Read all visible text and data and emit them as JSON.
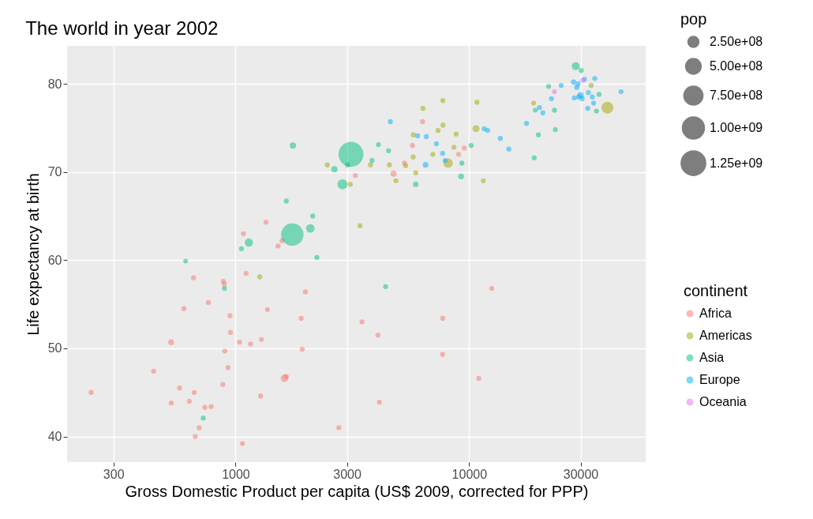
{
  "chart_data": {
    "type": "bubble",
    "title": "The world in year 2002",
    "xlabel": "Gross Domestic Product per capita (US$ 2009, corrected for PPP)",
    "ylabel": "Life expectancy at birth",
    "legend_title": [
      "pop",
      "continent"
    ],
    "log": "x",
    "grid": true,
    "legend": "right",
    "marker": "circle",
    "xlim": [
      190,
      57000
    ],
    "xticks": [
      300,
      1000,
      3000,
      10000,
      30000
    ],
    "ylim": [
      37.1,
      84.3
    ],
    "yticks": [
      40,
      50,
      60,
      70,
      80
    ],
    "size_legend": [
      {
        "value": 250000000,
        "label": "2.50e+08"
      },
      {
        "value": 500000000,
        "label": "5.00e+08"
      },
      {
        "value": 750000000,
        "label": "7.50e+08"
      },
      {
        "value": 1000000000,
        "label": "1.00e+09"
      },
      {
        "value": 1250000000,
        "label": "1.25e+09"
      }
    ],
    "series": [
      {
        "name": "Africa",
        "color": "#f8766d",
        "x": [
          5290,
          2770,
          1370,
          11000,
          1040,
          446,
          1930,
          739,
          1160,
          1080,
          241,
          3480,
          1650,
          1910,
          4750,
          7700,
          765,
          530,
          12500,
          661,
          1110,
          946,
          576,
          1290,
          1280,
          531,
          9530,
          895,
          665,
          951,
          1580,
          9020,
          3260,
          634,
          4070,
          601,
          1620,
          6320,
          786,
          1350,
          1520,
          699,
          882,
          7710,
          1990,
          4130,
          899,
          886,
          5720,
          928,
          1070,
          672
        ],
        "values": [
          71.0,
          41.0,
          54.4,
          46.6,
          50.7,
          47.4,
          49.9,
          43.3,
          50.5,
          63.0,
          45.0,
          53.0,
          46.8,
          53.4,
          69.8,
          49.3,
          55.2,
          50.7,
          56.8,
          58.0,
          58.5,
          53.7,
          45.5,
          51.0,
          44.6,
          43.8,
          72.7,
          57.3,
          45.0,
          51.8,
          62.2,
          72.0,
          69.6,
          44.0,
          51.5,
          54.5,
          46.6,
          75.7,
          43.4,
          64.3,
          61.6,
          41.0,
          45.9,
          53.4,
          56.4,
          43.9,
          49.7,
          57.6,
          73.0,
          47.8,
          39.2,
          40.0
        ],
        "sizes": [
          null,
          null,
          null,
          null,
          null,
          null,
          null,
          null,
          null,
          null,
          55000000,
          null,
          null,
          null,
          73000000,
          null,
          null,
          68000000,
          null,
          null,
          null,
          null,
          null,
          null,
          null,
          null,
          null,
          null,
          null,
          null,
          null,
          null,
          null,
          null,
          null,
          null,
          120000000,
          null,
          null,
          null,
          null,
          null,
          null,
          null,
          null,
          null,
          null,
          null,
          null,
          null,
          null,
          null
        ]
      },
      {
        "name": "Americas",
        "color": "#a3a500",
        "x": [
          8800,
          3410,
          8130,
          33300,
          10800,
          5760,
          7720,
          6340,
          4560,
          5770,
          5350,
          4860,
          1270,
          3100,
          6990,
          10700,
          2470,
          7360,
          3780,
          5910,
          18900,
          11500,
          39100,
          7730,
          8610
        ],
        "values": [
          74.3,
          63.9,
          71.0,
          79.8,
          77.9,
          71.7,
          78.1,
          77.2,
          70.8,
          74.2,
          70.7,
          69.0,
          58.1,
          68.6,
          72.0,
          74.9,
          70.8,
          74.7,
          70.8,
          69.9,
          77.8,
          69.0,
          77.3,
          75.3,
          72.8
        ],
        "sizes": [
          null,
          null,
          180000000,
          null,
          null,
          null,
          null,
          null,
          null,
          null,
          null,
          null,
          null,
          null,
          null,
          100000000,
          null,
          null,
          null,
          null,
          null,
          null,
          290000000,
          null,
          null
        ]
      },
      {
        "name": "Asia",
        "color": "#00bf7d",
        "x": [
          727,
          23400,
          1140,
          896,
          3120,
          30200,
          1750,
          2870,
          9240,
          4390,
          21900,
          28600,
          3840,
          1650,
          19200,
          35100,
          9310,
          10200,
          2140,
          611,
          1060,
          19800,
          2090,
          2650,
          19000,
          36000,
          3020,
          4090,
          23200,
          5910,
          1760,
          4520,
          2230
        ],
        "values": [
          42.1,
          74.8,
          62.0,
          56.8,
          72.0,
          81.5,
          62.9,
          68.6,
          69.5,
          57.0,
          79.7,
          82.0,
          71.3,
          66.7,
          77.0,
          76.9,
          71.0,
          73.0,
          65.0,
          59.9,
          61.3,
          74.2,
          63.6,
          70.3,
          71.6,
          78.8,
          70.8,
          73.1,
          77.0,
          68.6,
          73.0,
          72.4,
          60.3
        ],
        "sizes": [
          null,
          null,
          140000000,
          null,
          1280000000,
          null,
          1030000000,
          210000000,
          67000000,
          null,
          null,
          130000000,
          null,
          null,
          48000000,
          null,
          null,
          null,
          null,
          46000000,
          null,
          null,
          150000000,
          83000000,
          null,
          null,
          null,
          null,
          null,
          63000000,
          81000000,
          null,
          null
        ]
      },
      {
        "name": "Europe",
        "color": "#00b0f6",
        "x": [
          4600,
          32400,
          30500,
          6020,
          7700,
          11600,
          17600,
          32200,
          28200,
          28900,
          30000,
          22500,
          14800,
          31200,
          34100,
          28000,
          6560,
          33700,
          44700,
          12000,
          20000,
          7890,
          7240,
          13600,
          20700,
          24800,
          29300,
          34500,
          6510,
          29500
        ],
        "values": [
          75.7,
          79.0,
          78.3,
          74.1,
          72.1,
          74.9,
          75.5,
          77.2,
          78.4,
          79.6,
          78.7,
          78.3,
          72.6,
          80.5,
          77.8,
          80.2,
          74.0,
          78.5,
          79.1,
          74.7,
          77.3,
          71.3,
          73.2,
          73.8,
          76.7,
          79.8,
          80.0,
          80.6,
          70.8,
          78.5
        ],
        "sizes": [
          null,
          null,
          null,
          null,
          null,
          null,
          null,
          null,
          null,
          60000000,
          82000000,
          null,
          null,
          null,
          null,
          58000000,
          null,
          null,
          null,
          null,
          null,
          null,
          null,
          null,
          null,
          null,
          null,
          null,
          67000000,
          60000000
        ]
      },
      {
        "name": "Oceania",
        "color": "#e76bf3",
        "x": [
          30700,
          23200
        ],
        "values": [
          80.4,
          79.1
        ]
      }
    ]
  }
}
